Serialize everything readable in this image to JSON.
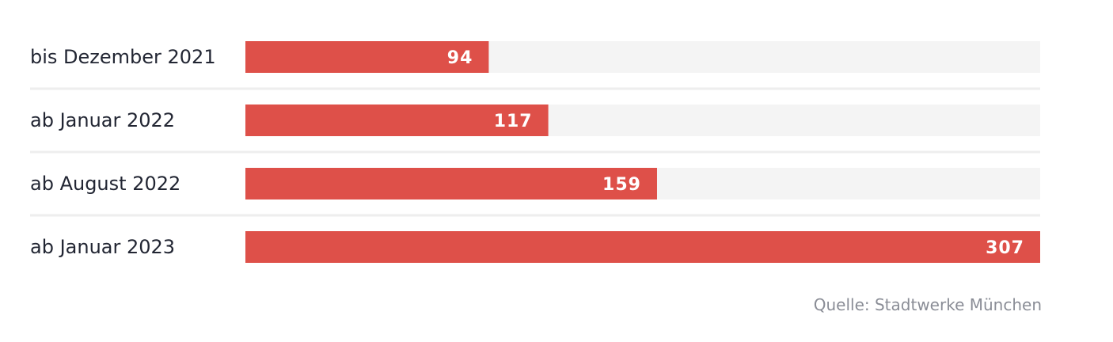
{
  "chart_data": {
    "type": "bar",
    "orientation": "horizontal",
    "categories": [
      "bis Dezember 2021",
      "ab Januar 2022",
      "ab August 2022",
      "ab Januar 2023"
    ],
    "values": [
      94,
      117,
      159,
      307
    ],
    "xlim": [
      0,
      307
    ],
    "grid": false,
    "bar_color": "#de5049",
    "track_color": "#f4f4f4",
    "separator_color": "#eeeeee",
    "value_label_color": "#ffffff"
  },
  "source": "Quelle: Stadtwerke München"
}
